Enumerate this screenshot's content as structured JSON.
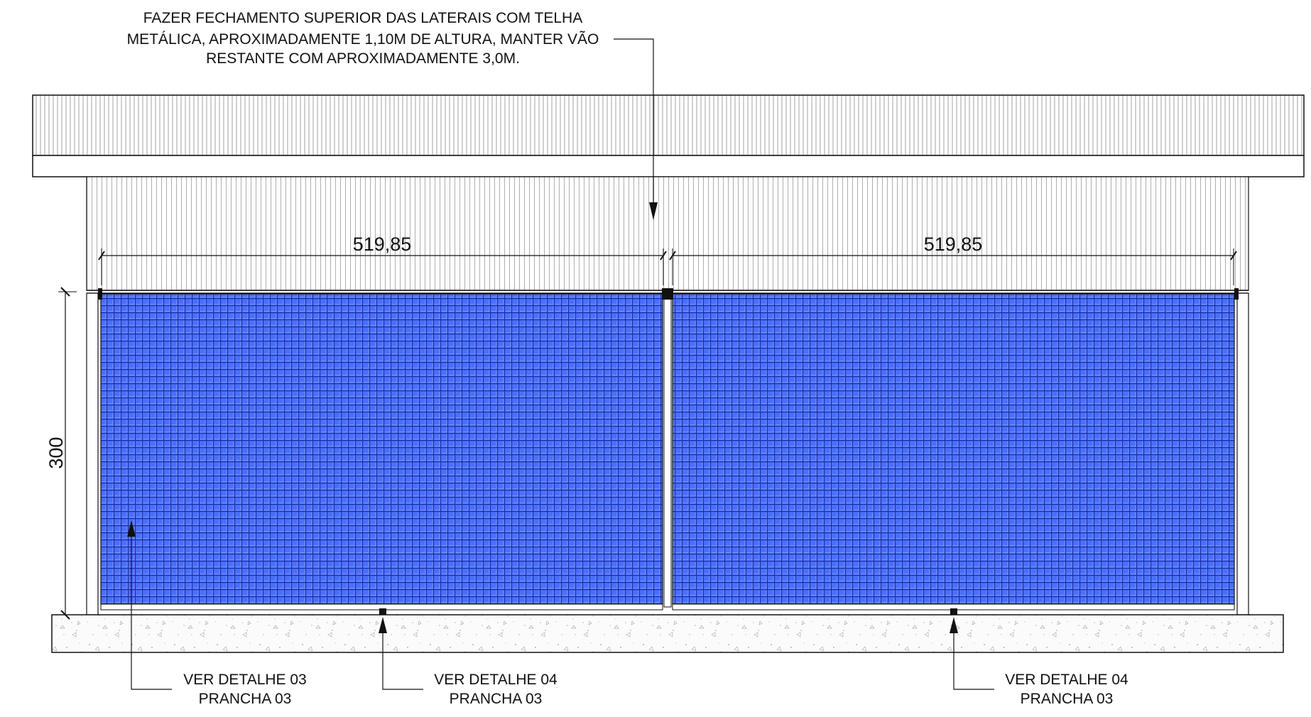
{
  "note_top": {
    "line1": "FAZER FECHAMENTO SUPERIOR DAS LATERAIS COM TELHA",
    "line2": "METÁLICA, APROXIMADAMENTE 1,10M DE ALTURA, MANTER VÃO",
    "line3": "RESTANTE COM APROXIMADAMENTE 3,0M."
  },
  "dimensions": {
    "left_width": "519,85",
    "right_width": "519,85",
    "height": "300"
  },
  "callouts": [
    {
      "line1": "VER DETALHE 03",
      "line2": "PRANCHA 03"
    },
    {
      "line1": "VER DETALHE 04",
      "line2": "PRANCHA 03"
    },
    {
      "line1": "VER DETALHE 04",
      "line2": "PRANCHA 03"
    }
  ],
  "colors": {
    "mesh": "#4a6fff",
    "mesh_grid": "#1c2f9a",
    "line": "#111111",
    "slab_fill": "#fbfbfb"
  }
}
